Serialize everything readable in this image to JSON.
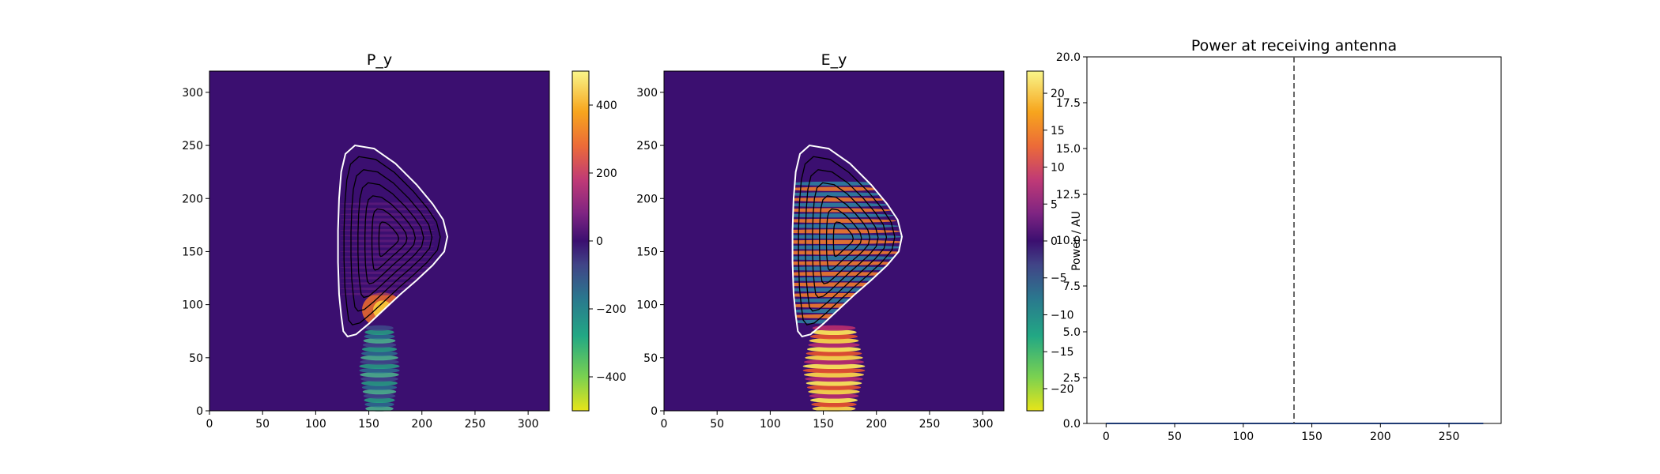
{
  "colors": {
    "background_field": "#3b0f70",
    "contour_lcfs": "#ffffff",
    "contour_flux": "#000000",
    "power_line": "#1f3b73",
    "antenna_line": "#555555"
  },
  "chart_data": [
    {
      "type": "heatmap",
      "title": "P_y",
      "xlabel": "",
      "ylabel": "",
      "xlim": [
        0,
        320
      ],
      "ylim": [
        0,
        320
      ],
      "xticks": [
        "0",
        "50",
        "100",
        "150",
        "200",
        "250",
        "300"
      ],
      "yticks": [
        "0",
        "50",
        "100",
        "150",
        "200",
        "250",
        "300"
      ],
      "xtick_values": [
        0,
        50,
        100,
        150,
        200,
        250,
        300
      ],
      "ytick_values": [
        0,
        50,
        100,
        150,
        200,
        250,
        300
      ],
      "colormap": "plasma_viridis_diverging",
      "colorbar": {
        "range": [
          -500,
          500
        ],
        "ticks": [
          "−400",
          "−200",
          "0",
          "200",
          "400"
        ],
        "tick_values": [
          -400,
          -200,
          0,
          200,
          400
        ],
        "label": ""
      },
      "beam_center_x": 160,
      "plasma_boundary": [
        [
          137,
          250
        ],
        [
          155,
          247
        ],
        [
          175,
          233
        ],
        [
          195,
          213
        ],
        [
          210,
          195
        ],
        [
          220,
          180
        ],
        [
          224,
          164
        ],
        [
          221,
          150
        ],
        [
          210,
          137
        ],
        [
          195,
          123
        ],
        [
          180,
          110
        ],
        [
          165,
          96
        ],
        [
          150,
          82
        ],
        [
          138,
          72
        ],
        [
          130,
          70
        ],
        [
          126,
          75
        ],
        [
          124,
          90
        ],
        [
          122,
          110
        ],
        [
          121,
          140
        ],
        [
          121,
          170
        ],
        [
          122,
          200
        ],
        [
          124,
          225
        ],
        [
          128,
          242
        ]
      ]
    },
    {
      "type": "heatmap",
      "title": "E_y",
      "xlabel": "",
      "ylabel": "",
      "xlim": [
        0,
        320
      ],
      "ylim": [
        0,
        320
      ],
      "xticks": [
        "0",
        "50",
        "100",
        "150",
        "200",
        "250",
        "300"
      ],
      "yticks": [
        "0",
        "50",
        "100",
        "150",
        "200",
        "250",
        "300"
      ],
      "xtick_values": [
        0,
        50,
        100,
        150,
        200,
        250,
        300
      ],
      "ytick_values": [
        0,
        50,
        100,
        150,
        200,
        250,
        300
      ],
      "colormap": "plasma_viridis_diverging",
      "colorbar": {
        "range": [
          -23,
          23
        ],
        "ticks": [
          "−20",
          "−15",
          "−10",
          "−5",
          "0",
          "5",
          "10",
          "15",
          "20"
        ],
        "tick_values": [
          -20,
          -15,
          -10,
          -5,
          0,
          5,
          10,
          15,
          20
        ],
        "label": "Power / AU"
      },
      "beam_center_x": 160,
      "plasma_boundary": [
        [
          137,
          250
        ],
        [
          155,
          247
        ],
        [
          175,
          233
        ],
        [
          195,
          213
        ],
        [
          210,
          195
        ],
        [
          220,
          180
        ],
        [
          224,
          164
        ],
        [
          221,
          150
        ],
        [
          210,
          137
        ],
        [
          195,
          123
        ],
        [
          180,
          110
        ],
        [
          165,
          96
        ],
        [
          150,
          82
        ],
        [
          138,
          72
        ],
        [
          130,
          70
        ],
        [
          126,
          75
        ],
        [
          124,
          90
        ],
        [
          122,
          110
        ],
        [
          121,
          140
        ],
        [
          121,
          170
        ],
        [
          122,
          200
        ],
        [
          124,
          225
        ],
        [
          128,
          242
        ]
      ]
    },
    {
      "type": "line",
      "title": "Power at receiving antenna",
      "xlabel": "",
      "ylabel": "",
      "xlim": [
        -14,
        288
      ],
      "ylim": [
        0,
        20
      ],
      "xticks": [
        "0",
        "50",
        "100",
        "150",
        "200",
        "250"
      ],
      "yticks": [
        "0.0",
        "2.5",
        "5.0",
        "7.5",
        "10.0",
        "12.5",
        "15.0",
        "17.5",
        "20.0"
      ],
      "xtick_values": [
        0,
        50,
        100,
        150,
        200,
        250
      ],
      "ytick_values": [
        0,
        2.5,
        5,
        7.5,
        10,
        12.5,
        15,
        17.5,
        20
      ],
      "series": [
        {
          "x": [
            0,
            50,
            100,
            150,
            200,
            250,
            275
          ],
          "y": [
            0,
            0,
            0,
            0,
            0,
            0,
            0
          ]
        }
      ],
      "vline_x": 137
    }
  ]
}
